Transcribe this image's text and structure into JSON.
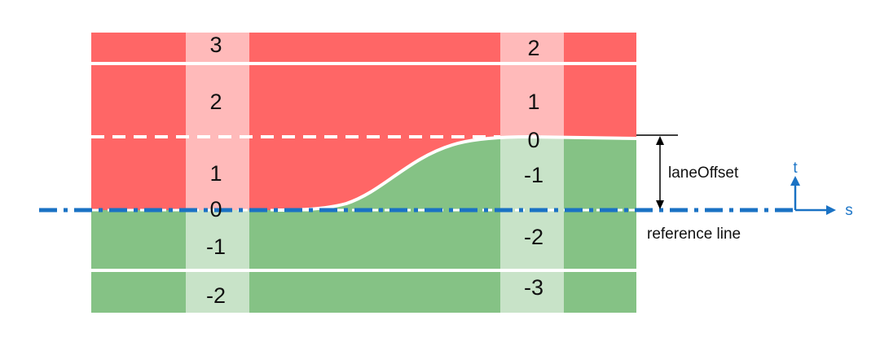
{
  "colors": {
    "left_lane": "#ff6666",
    "right_lane": "#85c285",
    "section_left": "#ffc4c4",
    "section_right": "#d2ead2",
    "reference_line": "#1a72c4",
    "axis": "#1a72c4"
  },
  "sections": [
    {
      "lanes_left": [
        "3",
        "2",
        "1"
      ],
      "lane_center": "0",
      "lanes_right": [
        "-1",
        "-2"
      ]
    },
    {
      "lanes_left": [
        "2",
        "1"
      ],
      "lane_center": "0",
      "lanes_right": [
        "-1",
        "-2",
        "-3"
      ]
    }
  ],
  "annotations": {
    "lane_offset": "laneOffset",
    "reference_line": "reference line"
  },
  "axis": {
    "t": "t",
    "s": "s"
  }
}
